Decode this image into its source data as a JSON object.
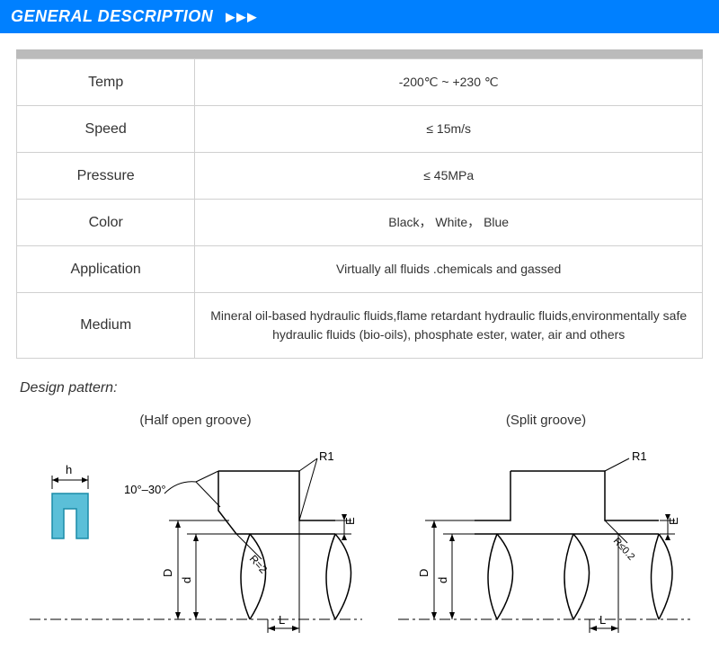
{
  "header": {
    "title": "GENERAL DESCRIPTION",
    "arrows": "▶▶▶",
    "bg_color": "#0080ff",
    "text_color": "#ffffff"
  },
  "table": {
    "rows": [
      {
        "key": "Temp",
        "val": "-200℃ ~ +230 ℃"
      },
      {
        "key": "Speed",
        "val": "≤ 15m/s"
      },
      {
        "key": "Pressure",
        "val": "≤ 45MPa"
      },
      {
        "key": "Color",
        "val": "Black， White， Blue"
      },
      {
        "key": "Application",
        "val": "Virtually all fluids .chemicals and gassed"
      },
      {
        "key": "Medium",
        "val": "Mineral oil-based hydraulic fluids,flame retardant hydraulic fluids,environmentally safe hydraulic fluids (bio-oils), phosphate ester, water, air and others"
      }
    ],
    "border_color": "#d0d0d0"
  },
  "design": {
    "section_title": "Design pattern:",
    "half_open": {
      "caption": "(Half open groove)",
      "seal_fill": "#5bbfd8",
      "seal_stroke": "#1a8ba8",
      "line_color": "#000000",
      "labels": {
        "h": "h",
        "angle": "10°–30°",
        "R1": "R1",
        "R2": "R=2",
        "E": "E",
        "D": "D",
        "d": "d",
        "L": "L"
      }
    },
    "split": {
      "caption": "(Split groove)",
      "line_color": "#000000",
      "labels": {
        "R1": "R1",
        "R02": "R≤0.2",
        "E": "E",
        "D": "D",
        "d": "d",
        "L": "L"
      }
    }
  }
}
